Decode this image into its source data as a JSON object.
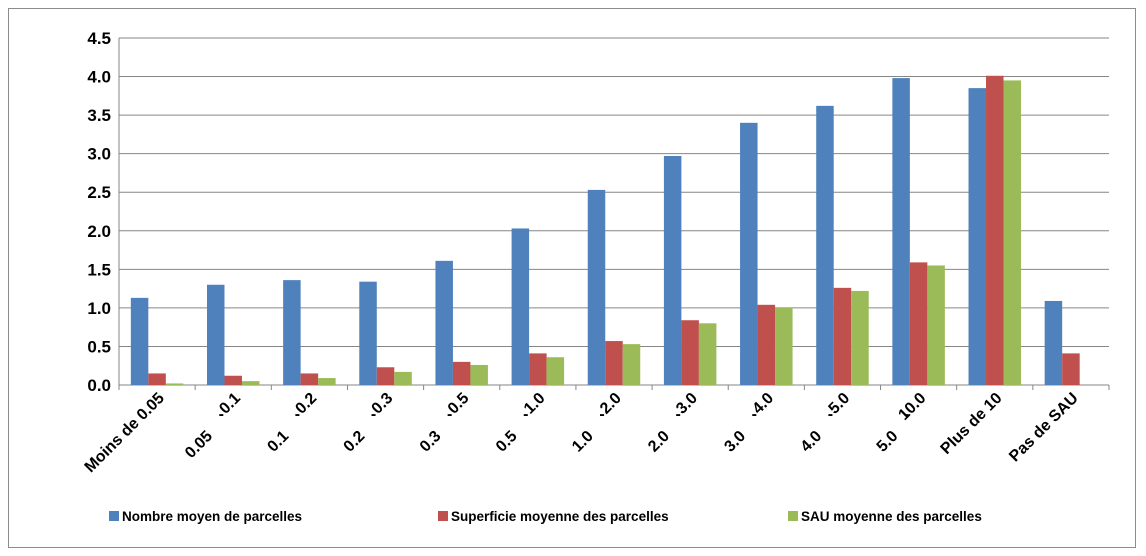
{
  "chart_data": {
    "type": "bar",
    "title": "",
    "xlabel": "",
    "ylabel": "",
    "ylim": [
      0,
      4.5
    ],
    "yticks": [
      "0.0",
      "0.5",
      "1.0",
      "1.5",
      "2.0",
      "2.5",
      "3.0",
      "3.5",
      "4.0",
      "4.5"
    ],
    "grid": true,
    "legend_position": "bottom",
    "categories": [
      {
        "top": "Moins de 0.05",
        "bottom": ""
      },
      {
        "top": "0.1",
        "bottom": "0.05"
      },
      {
        "top": "0.2",
        "bottom": "0.1"
      },
      {
        "top": "0.3",
        "bottom": "0.2"
      },
      {
        "top": "0.5",
        "bottom": "0.3"
      },
      {
        "top": "1.0",
        "bottom": "0.5"
      },
      {
        "top": "2.0",
        "bottom": "1.0"
      },
      {
        "top": "3.0",
        "bottom": "2.0"
      },
      {
        "top": "4.0",
        "bottom": "3.0"
      },
      {
        "top": "5.0",
        "bottom": "4.0"
      },
      {
        "top": "10.0",
        "bottom": "5.0"
      },
      {
        "top": "Plus de 10",
        "bottom": ""
      },
      {
        "top": "Pas de SAU",
        "bottom": ""
      }
    ],
    "range_separator": "-",
    "series": [
      {
        "name": "Nombre moyen de parcelles",
        "color": "#4f81bd",
        "values": [
          1.13,
          1.3,
          1.36,
          1.34,
          1.61,
          2.03,
          2.53,
          2.97,
          3.4,
          3.62,
          3.98,
          3.85,
          1.09
        ]
      },
      {
        "name": "Superficie moyenne des parcelles",
        "color": "#c0504d",
        "values": [
          0.15,
          0.12,
          0.15,
          0.23,
          0.3,
          0.41,
          0.57,
          0.84,
          1.04,
          1.26,
          1.59,
          4.01,
          0.41
        ]
      },
      {
        "name": "SAU moyenne des parcelles",
        "color": "#9bbb59",
        "values": [
          0.02,
          0.05,
          0.09,
          0.17,
          0.26,
          0.36,
          0.53,
          0.8,
          1.0,
          1.22,
          1.55,
          3.95,
          null
        ]
      }
    ]
  }
}
